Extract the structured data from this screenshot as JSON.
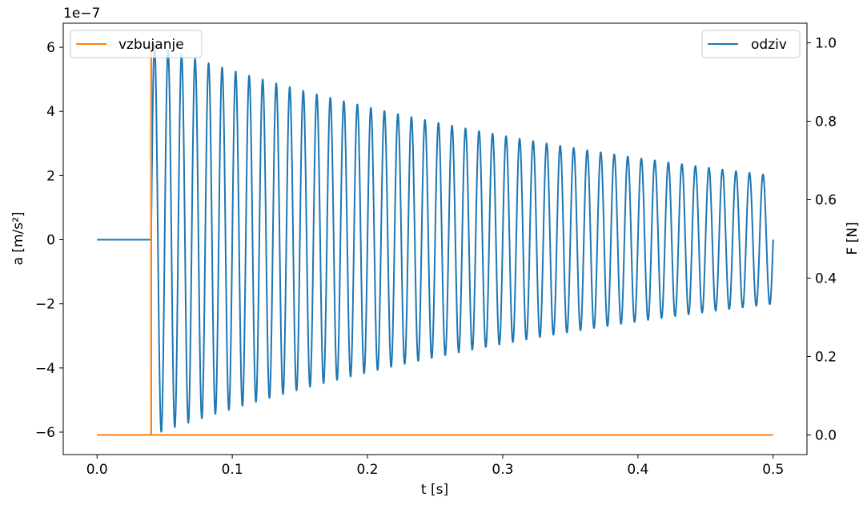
{
  "chart_data": {
    "type": "line",
    "x_axis": {
      "label": "t [s]",
      "range": [
        -0.025,
        0.525
      ],
      "ticks": [
        0.0,
        0.1,
        0.2,
        0.3,
        0.4,
        0.5
      ],
      "tick_labels": [
        "0.0",
        "0.1",
        "0.2",
        "0.3",
        "0.4",
        "0.5"
      ]
    },
    "y_axis_left": {
      "label": "a [m/s²]",
      "range": [
        -6.7,
        6.75
      ],
      "ticks": [
        -6,
        -4,
        -2,
        0,
        2,
        4,
        6
      ],
      "tick_labels": [
        "−6",
        "−4",
        "−2",
        "0",
        "2",
        "4",
        "6"
      ],
      "offset_text": "1e−7",
      "scale": 1e-07
    },
    "y_axis_right": {
      "label": "F [N]",
      "range": [
        -0.05,
        1.05
      ],
      "ticks": [
        0.0,
        0.2,
        0.4,
        0.6,
        0.8,
        1.0
      ],
      "tick_labels": [
        "0.0",
        "0.2",
        "0.4",
        "0.6",
        "0.8",
        "1.0"
      ]
    },
    "grid": false,
    "series": [
      {
        "name": "odziv",
        "axis": "left",
        "color": "#1f77b4",
        "description": "zero until impulse, then decaying sinusoid",
        "start_time": 0.04,
        "frequency_hz": 100,
        "initial_amplitude": 6.1,
        "envelope_points": {
          "t": [
            0.04,
            0.5
          ],
          "amplitude": [
            6.1,
            2.0
          ]
        },
        "end_time": 0.5,
        "end_value": 0.87
      },
      {
        "name": "vzbujanje",
        "axis": "right",
        "color": "#ff7f0e",
        "description": "unit impulse excitation",
        "x": [
          0.0,
          0.04,
          0.04,
          0.0401,
          0.0401,
          0.5
        ],
        "y": [
          0.0,
          0.0,
          1.0,
          1.0,
          0.0,
          0.0
        ]
      }
    ],
    "legends": [
      {
        "entries": [
          "vzbujanje"
        ],
        "placement": "upper left"
      },
      {
        "entries": [
          "odziv"
        ],
        "placement": "upper right"
      }
    ]
  }
}
